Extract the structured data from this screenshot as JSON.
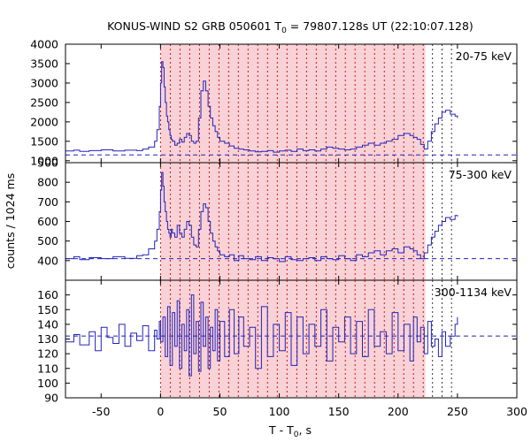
{
  "title_parts": {
    "pre": "KONUS-WIND S2 GRB 050601 T",
    "sub": "0",
    "post": " = 79807.128s UT (22:10:07.128)"
  },
  "xlabel_parts": {
    "pre": "T - T",
    "sub": "0",
    "post": ", s"
  },
  "ylabel": "counts / 1024 ms",
  "colors": {
    "data": "#2222bb",
    "background_dashed": "#2222bb",
    "shade": "#f8d2d6",
    "interval_lines": "#cc0000",
    "late_lines": "#222222"
  },
  "chart_data": {
    "type": "line",
    "x_range": [
      -80,
      300
    ],
    "x_ticks": [
      -50,
      0,
      50,
      100,
      150,
      200,
      250,
      300
    ],
    "shaded_interval": [
      0,
      223
    ],
    "interval_boundaries_red": [
      0,
      8.2,
      16.4,
      24.6,
      32.8,
      41.0,
      49.2,
      57.3,
      65.5,
      73.7,
      81.9,
      90.1,
      98.3,
      106.5,
      114.7,
      122.9,
      131.1,
      139.3,
      147.5,
      155.6,
      163.8,
      172.0,
      180.2,
      188.4,
      196.6,
      204.8,
      213.0,
      221.2
    ],
    "interval_boundaries_black": [
      229,
      237,
      245
    ],
    "panels": [
      {
        "label": "20-75 keV",
        "y_range": [
          950,
          4000
        ],
        "y_ticks": [
          1000,
          1500,
          2000,
          2500,
          3000,
          3500,
          4000
        ],
        "background": 1150,
        "series": [
          {
            "x": [
              -80,
              -73,
              -68,
              -60,
              -50,
              -40,
              -30,
              -20,
              -15,
              -10,
              -5,
              -3,
              -1,
              0,
              1,
              2,
              3,
              4,
              5,
              6,
              7,
              8,
              9,
              10,
              12,
              14,
              16,
              18,
              20,
              22,
              24,
              26,
              28,
              30,
              32,
              34,
              36,
              38,
              40,
              42,
              44,
              46,
              48,
              50,
              54,
              58,
              62,
              66,
              70,
              75,
              80,
              85,
              90,
              95,
              100,
              105,
              110,
              115,
              120,
              125,
              130,
              135,
              140,
              145,
              150,
              155,
              160,
              165,
              170,
              175,
              180,
              185,
              190,
              195,
              200,
              205,
              210,
              213,
              216,
              219,
              222,
              225,
              228,
              231,
              234,
              237,
              240,
              244,
              248,
              250
            ],
            "y": [
              1250,
              1270,
              1240,
              1260,
              1280,
              1250,
              1270,
              1260,
              1300,
              1350,
              1500,
              1800,
              2400,
              3000,
              3550,
              3400,
              2900,
              2500,
              2150,
              2000,
              1800,
              1650,
              1550,
              1500,
              1400,
              1450,
              1550,
              1480,
              1600,
              1700,
              1650,
              1500,
              1450,
              1500,
              2100,
              2800,
              3050,
              2800,
              2400,
              2100,
              1900,
              1750,
              1600,
              1500,
              1450,
              1380,
              1320,
              1300,
              1280,
              1250,
              1230,
              1240,
              1260,
              1220,
              1250,
              1270,
              1240,
              1300,
              1260,
              1280,
              1250,
              1300,
              1350,
              1320,
              1300,
              1280,
              1300,
              1350,
              1400,
              1450,
              1400,
              1450,
              1500,
              1550,
              1650,
              1700,
              1650,
              1600,
              1550,
              1420,
              1300,
              1500,
              1750,
              1950,
              2100,
              2250,
              2300,
              2200,
              2150,
              2100
            ]
          }
        ]
      },
      {
        "label": "75-300 keV",
        "y_range": [
          300,
          900
        ],
        "y_ticks": [
          400,
          500,
          600,
          700,
          800
        ],
        "background": 410,
        "series": [
          {
            "x": [
              -80,
              -73,
              -68,
              -60,
              -50,
              -40,
              -30,
              -20,
              -15,
              -10,
              -5,
              -3,
              -1,
              0,
              1,
              2,
              3,
              4,
              5,
              6,
              7,
              8,
              9,
              10,
              12,
              14,
              16,
              18,
              20,
              22,
              24,
              26,
              28,
              30,
              32,
              34,
              36,
              38,
              40,
              42,
              44,
              46,
              48,
              50,
              54,
              58,
              62,
              66,
              70,
              75,
              80,
              85,
              90,
              95,
              100,
              105,
              110,
              115,
              120,
              125,
              130,
              135,
              140,
              145,
              150,
              155,
              160,
              165,
              170,
              175,
              180,
              185,
              190,
              195,
              200,
              205,
              210,
              213,
              216,
              219,
              222,
              225,
              228,
              231,
              234,
              237,
              240,
              244,
              248,
              250
            ],
            "y": [
              410,
              420,
              405,
              415,
              410,
              420,
              412,
              425,
              430,
              460,
              500,
              560,
              650,
              760,
              850,
              780,
              700,
              650,
              600,
              560,
              540,
              520,
              560,
              540,
              520,
              580,
              540,
              520,
              560,
              600,
              580,
              520,
              480,
              470,
              560,
              650,
              690,
              670,
              600,
              540,
              500,
              470,
              450,
              430,
              420,
              430,
              400,
              425,
              410,
              405,
              420,
              400,
              415,
              410,
              395,
              420,
              405,
              400,
              410,
              415,
              400,
              420,
              410,
              405,
              425,
              410,
              400,
              430,
              420,
              440,
              450,
              430,
              450,
              460,
              440,
              470,
              460,
              450,
              430,
              410,
              440,
              480,
              520,
              550,
              580,
              600,
              620,
              610,
              630,
              625
            ]
          }
        ]
      },
      {
        "label": "300-1134 keV",
        "y_range": [
          90,
          170
        ],
        "y_ticks": [
          90,
          100,
          110,
          120,
          130,
          140,
          150,
          160
        ],
        "background": 132,
        "series": [
          {
            "x": [
              -80,
              -73,
              -68,
              -60,
              -55,
              -50,
              -45,
              -40,
              -35,
              -30,
              -25,
              -20,
              -15,
              -10,
              -5,
              -3,
              -1,
              0,
              2,
              4,
              6,
              8,
              10,
              12,
              14,
              16,
              18,
              20,
              22,
              24,
              26,
              28,
              30,
              32,
              34,
              36,
              38,
              40,
              42,
              44,
              46,
              48,
              50,
              54,
              58,
              62,
              66,
              70,
              75,
              80,
              85,
              90,
              95,
              100,
              105,
              110,
              115,
              120,
              125,
              130,
              135,
              140,
              145,
              150,
              155,
              160,
              165,
              170,
              175,
              180,
              185,
              190,
              195,
              200,
              205,
              210,
              213,
              216,
              219,
              222,
              225,
              228,
              231,
              234,
              237,
              240,
              244,
              248,
              250
            ],
            "y": [
              128,
              133,
              126,
              135,
              122,
              138,
              131,
              127,
              140,
              125,
              134,
              129,
              139,
              122,
              136,
              130,
              142,
              128,
              145,
              118,
              152,
              112,
              148,
              125,
              156,
              110,
              140,
              122,
              150,
              105,
              160,
              120,
              142,
              108,
              155,
              125,
              145,
              110,
              138,
              122,
              150,
              115,
              142,
              118,
              150,
              120,
              145,
              125,
              138,
              110,
              152,
              118,
              140,
              122,
              148,
              112,
              145,
              120,
              140,
              125,
              150,
              115,
              138,
              128,
              145,
              120,
              142,
              118,
              150,
              125,
              135,
              120,
              148,
              122,
              140,
              115,
              145,
              128,
              138,
              120,
              142,
              125,
              130,
              118,
              135,
              125,
              132,
              140,
              145
            ]
          }
        ]
      }
    ]
  }
}
